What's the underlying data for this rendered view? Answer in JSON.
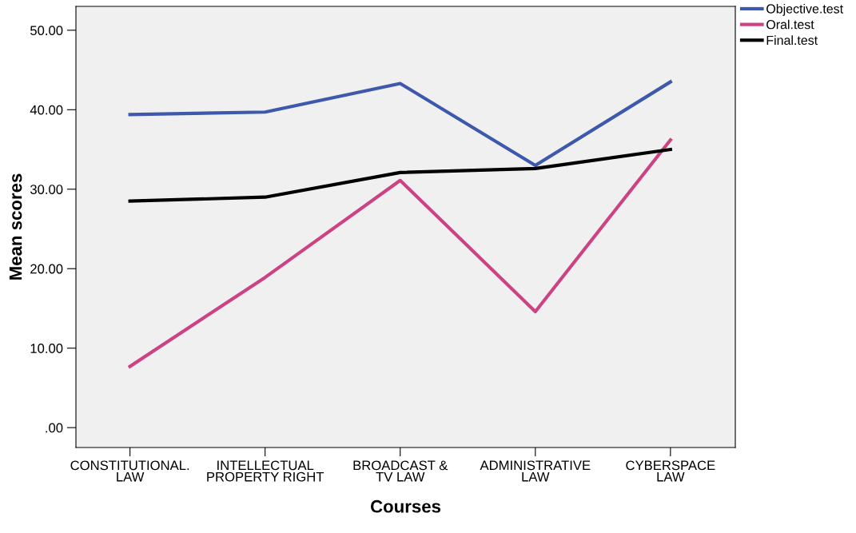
{
  "chart_data": {
    "type": "line",
    "xlabel": "Courses",
    "ylabel": "Mean scores",
    "categories": [
      "CONSTITUTIONAL.\nLAW",
      "INTELLECTUAL\nPROPERTY RIGHT",
      "BROADCAST &\nTV LAW",
      "ADMINISTRATIVE\nLAW",
      "CYBERSPACE\nLAW"
    ],
    "series": [
      {
        "name": "Objective.test",
        "color": "#3e58ac",
        "values": [
          39.4,
          39.7,
          43.3,
          33.0,
          43.5
        ]
      },
      {
        "name": "Oral.test",
        "color": "#cc4283",
        "values": [
          7.7,
          18.9,
          31.1,
          14.6,
          36.2
        ]
      },
      {
        "name": "Final.test",
        "color": "#000000",
        "values": [
          28.5,
          29.0,
          32.1,
          32.6,
          35.0
        ]
      }
    ],
    "ylim": [
      -2.5,
      53
    ],
    "yticks": [
      {
        "value": 0,
        "label": ".00"
      },
      {
        "value": 10,
        "label": "10.00"
      },
      {
        "value": 20,
        "label": "20.00"
      },
      {
        "value": 30,
        "label": "30.00"
      },
      {
        "value": 40,
        "label": "40.00"
      },
      {
        "value": 50,
        "label": "50.00"
      }
    ],
    "legend": "top right",
    "grid": false,
    "marker": "none",
    "line_style": "solid"
  }
}
